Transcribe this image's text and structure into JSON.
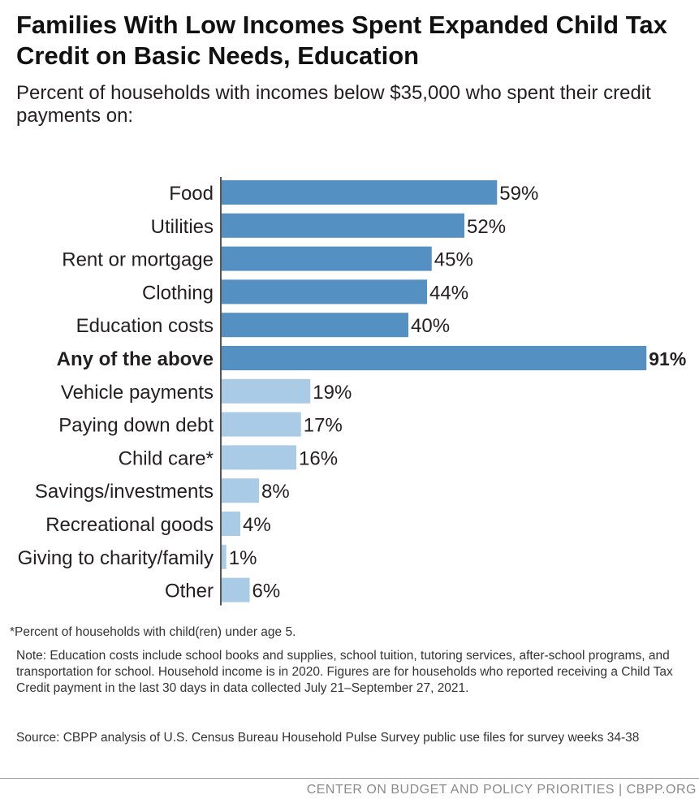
{
  "chart_data": {
    "type": "bar",
    "orientation": "horizontal",
    "title": "Families With Low Incomes Spent Expanded Child Tax Credit on Basic Needs, Education",
    "subtitle": "Percent of households with incomes below $35,000 who spent their credit payments on:",
    "categories": [
      "Food",
      "Utilities",
      "Rent or mortgage",
      "Clothing",
      "Education costs",
      "Any of the above",
      "Vehicle payments",
      "Paying down debt",
      "Child care*",
      "Savings/investments",
      "Recreational goods",
      "Giving to charity/family",
      "Other"
    ],
    "values": [
      59,
      52,
      45,
      44,
      40,
      91,
      19,
      17,
      16,
      8,
      4,
      1,
      6
    ],
    "value_labels": [
      "59%",
      "52%",
      "45%",
      "44%",
      "40%",
      "91%",
      "19%",
      "17%",
      "16%",
      "8%",
      "4%",
      "1%",
      "6%"
    ],
    "highlight_category": "Any of the above",
    "bar_colors": [
      "#5590c2",
      "#5590c2",
      "#5590c2",
      "#5590c2",
      "#5590c2",
      "#5590c2",
      "#a9cbe5",
      "#a9cbe5",
      "#a9cbe5",
      "#a9cbe5",
      "#a9cbe5",
      "#a9cbe5",
      "#a9cbe5"
    ],
    "xlim": [
      0,
      100
    ],
    "grid": false,
    "legend": "none"
  },
  "footnote": "*Percent of households with child(ren) under age 5.",
  "note": "Note: Education costs include school books and supplies, school tuition, tutoring services, after-school programs, and transportation for school. Household income is in 2020. Figures are for households who reported receiving a Child Tax Credit payment in the last 30 days in data collected July 21–September 27, 2021.",
  "source": "Source: CBPP analysis of U.S. Census Bureau Household Pulse Survey public use files for survey weeks 34-38",
  "credit": "CENTER ON BUDGET AND POLICY PRIORITIES | CBPP.ORG"
}
